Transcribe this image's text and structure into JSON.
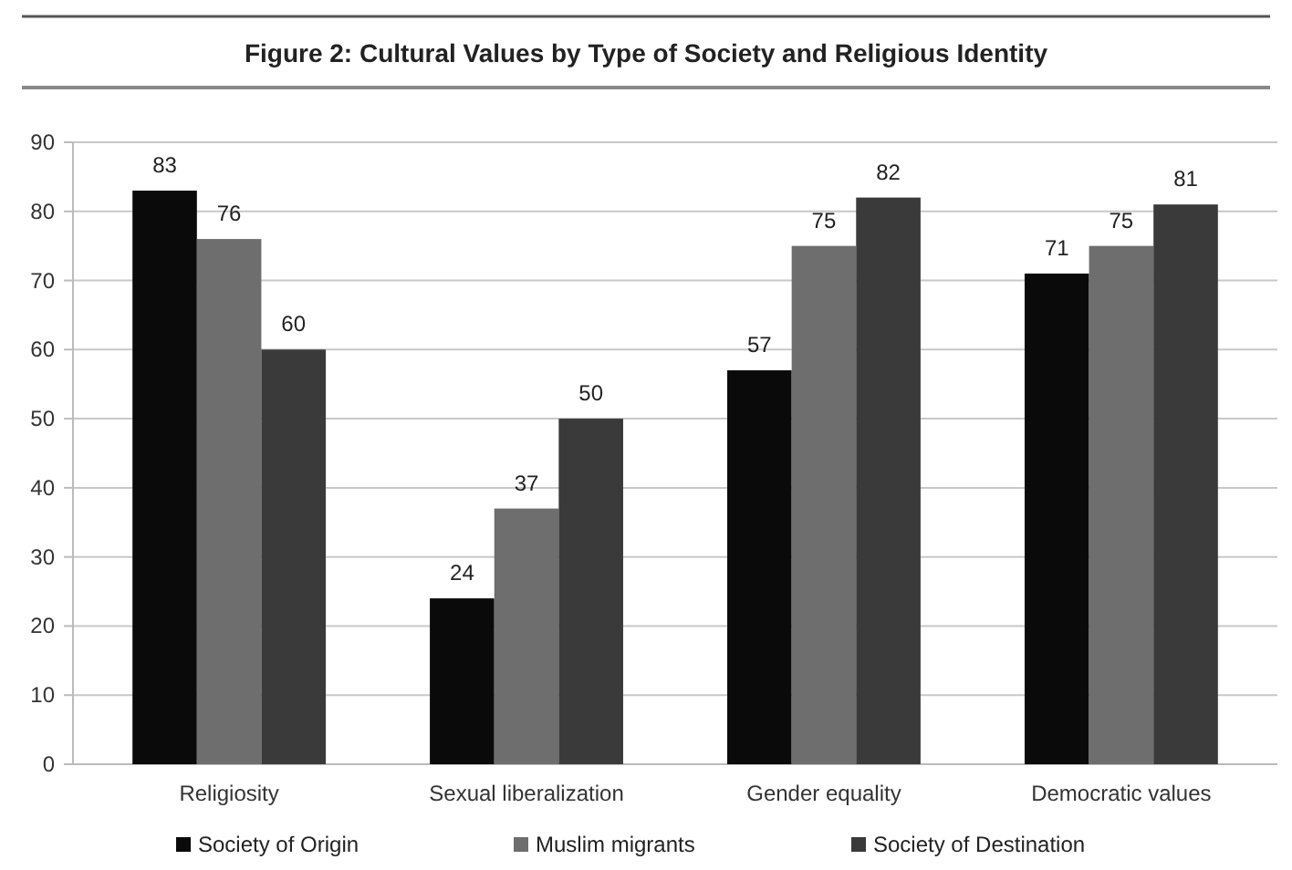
{
  "chart_data": {
    "type": "bar",
    "title": "Figure 2:  Cultural Values by Type of Society and Religious Identity",
    "categories": [
      "Religiosity",
      "Sexual liberalization",
      "Gender equality",
      "Democratic values"
    ],
    "series": [
      {
        "name": "Society of Origin",
        "color": "#0a0a0a",
        "values": [
          83,
          24,
          57,
          71
        ]
      },
      {
        "name": "Muslim migrants",
        "color": "#6e6e6e",
        "values": [
          76,
          37,
          75,
          75
        ]
      },
      {
        "name": "Society of Destination",
        "color": "#3a3a3a",
        "values": [
          60,
          50,
          82,
          81
        ]
      }
    ],
    "ylim": [
      0,
      90
    ],
    "yticks": [
      0,
      10,
      20,
      30,
      40,
      50,
      60,
      70,
      80,
      90
    ],
    "grid": "y",
    "legend": "bottom",
    "data_labels": true
  }
}
